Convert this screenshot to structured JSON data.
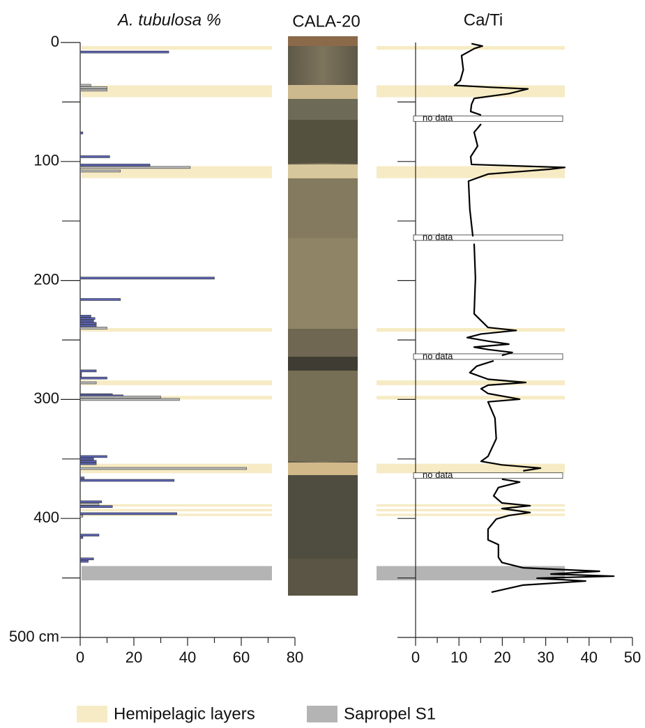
{
  "chart_data": [
    {
      "type": "bar",
      "title": "A. tubulosa %",
      "ylim": [
        0,
        500
      ],
      "yticks": [
        0,
        100,
        200,
        300,
        400,
        {
          "value": 500,
          "label": "500 cm"
        }
      ],
      "yminor": [
        50,
        150,
        250,
        350,
        450
      ],
      "xlim": [
        0,
        80
      ],
      "xticks": [
        0,
        20,
        40,
        60,
        80
      ],
      "xminor": [
        10,
        30,
        50,
        70
      ],
      "series": [
        {
          "color": "#5b63b2",
          "depth": [
            8,
            76,
            96,
            103,
            198,
            216,
            230,
            232,
            234,
            236,
            238,
            276,
            278,
            280,
            282,
            296,
            297,
            348,
            350,
            352,
            354,
            366,
            368,
            386,
            390,
            396,
            414,
            416,
            434,
            436
          ],
          "values": [
            33,
            1,
            11,
            26,
            50,
            15,
            4,
            5.5,
            5,
            6,
            6,
            6,
            0.5,
            0.5,
            10,
            12,
            16,
            10,
            5,
            6,
            6,
            1.5,
            35,
            8,
            12,
            36,
            7,
            1,
            5,
            3
          ]
        },
        {
          "color": "#bcbcbc",
          "depth": [
            36,
            38,
            40,
            105,
            108,
            240,
            286,
            298,
            300,
            358,
            388,
            398
          ],
          "values": [
            4,
            10,
            10,
            41,
            15,
            10,
            6,
            30,
            37,
            62,
            7,
            1
          ]
        }
      ]
    },
    {
      "type": "line",
      "title": "Ca/Ti",
      "ylim": [
        0,
        500
      ],
      "yminor": [
        50,
        100,
        150,
        200,
        250,
        300,
        350,
        400,
        450,
        500
      ],
      "xlim": [
        0,
        50
      ],
      "xticks": [
        0,
        10,
        20,
        30,
        40,
        50
      ],
      "xminor": [
        5,
        15,
        25,
        35,
        45
      ],
      "annotations": [
        {
          "text": "no data",
          "depth": 64
        },
        {
          "text": "no data",
          "depth": 164
        },
        {
          "text": "no data",
          "depth": 264
        },
        {
          "text": "no data",
          "depth": 364
        }
      ],
      "series": [
        {
          "color": "#000000",
          "depth": [
            1,
            3,
            5,
            11,
            23,
            32,
            36,
            37.5,
            39,
            43,
            47,
            52,
            58,
            61,
            64,
            68.5,
            75.5,
            87,
            96,
            102.5,
            105,
            106.5,
            110.6,
            116.5,
            140,
            163,
            166,
            169,
            198,
            228,
            239.5,
            242,
            245,
            248,
            251,
            253.5,
            256,
            258,
            260.5,
            263,
            266,
            267.5,
            272,
            277.5,
            283,
            285.7,
            288,
            291,
            295,
            299.8,
            302,
            315.6,
            333,
            347.8,
            352,
            355,
            357.7,
            360,
            364,
            367,
            369.4,
            374,
            381,
            387,
            389.3,
            391.7,
            395,
            397.5,
            400.5,
            409,
            418,
            422,
            432.7,
            437,
            441.5,
            444.4,
            446.7,
            448.5,
            450.2,
            452.6,
            456,
            462
          ],
          "values": [
            12.9,
            15.4,
            13.6,
            10.6,
            11,
            10.3,
            9,
            16.7,
            25.9,
            21.5,
            13.5,
            12.9,
            12.7,
            15.1,
            null,
            15.1,
            13.5,
            14.3,
            12.7,
            12.9,
            34.4,
            31,
            16.7,
            12.2,
            12.5,
            13.2,
            null,
            13.5,
            13.8,
            13.5,
            16.7,
            23.2,
            15.1,
            11.9,
            16.7,
            21.5,
            13.5,
            16.7,
            22.3,
            19.9,
            null,
            18,
            14.1,
            12.5,
            16.7,
            25.4,
            16.7,
            15.1,
            16.7,
            24,
            16.7,
            18.3,
            18.6,
            16.7,
            15.1,
            19.9,
            28.8,
            24.8,
            null,
            19.9,
            24,
            19.1,
            18,
            19.9,
            26.4,
            19.9,
            26.4,
            21.5,
            18.6,
            16.7,
            16.7,
            19.1,
            19.1,
            19.9,
            24.8,
            42.4,
            31.2,
            45.7,
            28,
            39.2,
            24.8,
            17.5
          ]
        }
      ]
    }
  ],
  "core": {
    "title": "CALA-20"
  },
  "layers": [
    {
      "name": "Hemipelagic layers",
      "color": "#f6ebc4",
      "ranges": [
        [
          3,
          6
        ],
        [
          36,
          46
        ],
        [
          104,
          114
        ],
        [
          240,
          243
        ],
        [
          284,
          288
        ],
        [
          297,
          300
        ],
        [
          354,
          362
        ],
        [
          388,
          390
        ],
        [
          392,
          394
        ],
        [
          396,
          398
        ]
      ]
    },
    {
      "name": "Sapropel S1",
      "color": "#b4b4b4",
      "ranges": [
        [
          440,
          452
        ]
      ]
    }
  ]
}
